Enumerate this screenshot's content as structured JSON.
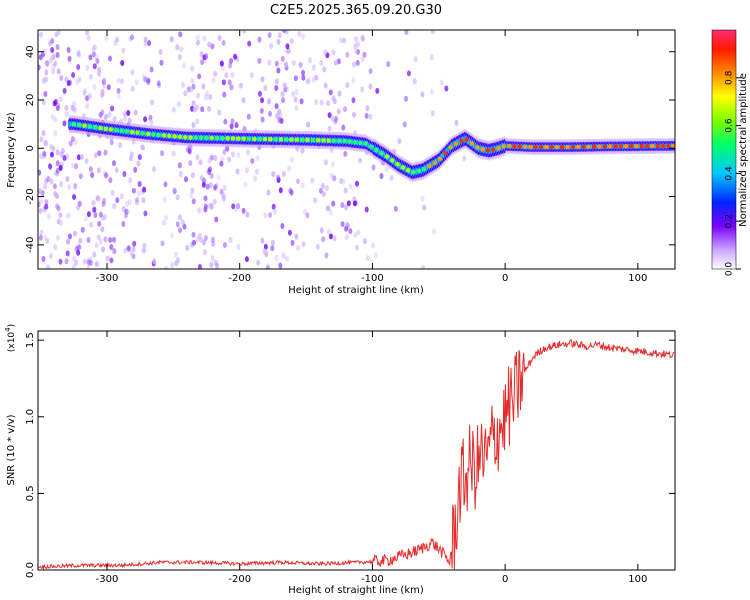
{
  "title": "C2E5.2025.365.09.20.G30",
  "colors": {
    "snr_line": "#e52b2b",
    "axis": "#000000"
  },
  "chart_data": [
    {
      "type": "heatmap",
      "xlabel": "Height of straight line (km)",
      "ylabel": "Frequency (Hz)",
      "xlim": [
        -352,
        128
      ],
      "ylim": [
        -50,
        49
      ],
      "xticks": [
        -300,
        -200,
        -100,
        0,
        100
      ],
      "xtick_labels": [
        "-300",
        "-200",
        "-100",
        "0",
        "100"
      ],
      "yticks": [
        -40,
        -20,
        0,
        20,
        40
      ],
      "ytick_labels": [
        "-40",
        "-20",
        "0",
        "20",
        "40"
      ],
      "colorbar": {
        "label": "Normalized spectral amplitude",
        "range": [
          0,
          1
        ],
        "ticks": [
          "0.0",
          "0.2",
          "0.4",
          "0.6",
          "0.8"
        ],
        "tick_values": [
          0,
          0.2,
          0.4,
          0.6,
          0.8
        ]
      },
      "ridge": {
        "x": [
          -325,
          -300,
          -270,
          -240,
          -200,
          -150,
          -120,
          -105,
          -90,
          -80,
          -70,
          -62,
          -50,
          -40,
          -30,
          -20,
          -12,
          -5,
          0,
          20,
          50,
          80,
          128
        ],
        "y": [
          10,
          8,
          6,
          4.5,
          4,
          3.5,
          3,
          2,
          -3,
          -7,
          -10,
          -9,
          -5,
          1,
          4,
          0,
          -1,
          0,
          1,
          0.5,
          0.5,
          0.8,
          1
        ]
      }
    },
    {
      "type": "line",
      "xlabel": "Height of straight line (km)",
      "ylabel": "SNR (10 * v/v)",
      "y_scale_label": "(x10",
      "y_scale_exp": "4",
      "y_scale_close": ")",
      "xlim": [
        -352,
        128
      ],
      "ylim": [
        0,
        1.56
      ],
      "xticks": [
        -300,
        -200,
        -100,
        0,
        100
      ],
      "xtick_labels": [
        "-300",
        "-200",
        "-100",
        "0",
        "100"
      ],
      "yticks": [
        0,
        0.5,
        1.0,
        1.5
      ],
      "ytick_labels": [
        "0.0",
        "0.5",
        "1.0",
        "1.5"
      ],
      "series": [
        {
          "name": "SNR",
          "x": [
            -352,
            -320,
            -290,
            -260,
            -230,
            -200,
            -170,
            -140,
            -110,
            -90,
            -75,
            -65,
            -55,
            -48,
            -42,
            -38,
            -34,
            -30,
            -26,
            -22,
            -18,
            -14,
            -10,
            -6,
            -2,
            2,
            6,
            10,
            15,
            22,
            30,
            40,
            50,
            60,
            70,
            80,
            90,
            100,
            110,
            120,
            128
          ],
          "y": [
            0.02,
            0.03,
            0.03,
            0.05,
            0.05,
            0.04,
            0.05,
            0.04,
            0.05,
            0.06,
            0.1,
            0.13,
            0.18,
            0.12,
            0.05,
            0.25,
            0.55,
            0.6,
            0.7,
            0.65,
            0.75,
            0.7,
            0.85,
            0.9,
            0.95,
            1.05,
            1.1,
            1.2,
            1.3,
            1.4,
            1.45,
            1.47,
            1.48,
            1.46,
            1.47,
            1.45,
            1.44,
            1.43,
            1.42,
            1.41,
            1.4
          ]
        }
      ]
    }
  ]
}
